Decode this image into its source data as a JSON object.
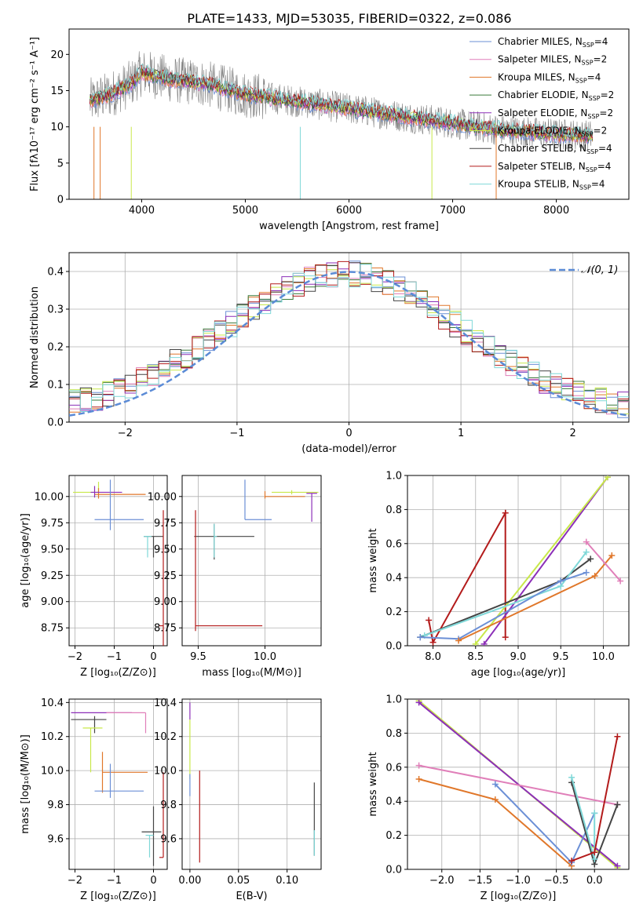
{
  "chart_data": [
    {
      "type": "line",
      "title": "PLATE=1433, MJD=53035, FIBERID=0322, z=0.086",
      "xlabel": "wavelength [Angstrom, rest frame]",
      "ylabel": "Flux [fλ10⁻¹⁷ erg cm⁻² s⁻¹ A⁻¹]",
      "xlim": [
        3300,
        8700
      ],
      "ylim": [
        0,
        23.5
      ],
      "xticks": [
        "4000",
        "5000",
        "6000",
        "7000",
        "8000"
      ],
      "yticks": [
        "0",
        "5",
        "10",
        "15",
        "20"
      ],
      "legend_position": "top-right",
      "series": [
        {
          "name": "Chabrier MILES, N$_{SSP}$=4",
          "color": "#6b8fd6"
        },
        {
          "name": "Salpeter MILES, N$_{SSP}$=2",
          "color": "#e07fb9"
        },
        {
          "name": "Kroupa MILES, N$_{SSP}$=4",
          "color": "#e0772a"
        },
        {
          "name": "Chabrier ELODIE, N$_{SSP}$=2",
          "color": "#3a7a3a"
        },
        {
          "name": "Salpeter ELODIE, N$_{SSP}$=2",
          "color": "#8c2fb8"
        },
        {
          "name": "Kroupa ELODIE, N$_{SSP}$=2",
          "color": "#c8e84a"
        },
        {
          "name": "Chabrier STELIB, N$_{SSP}$=4",
          "color": "#444444"
        },
        {
          "name": "Salpeter STELIB, N$_{SSP}$=4",
          "color": "#b31b1b"
        },
        {
          "name": "Kroupa STELIB, N$_{SSP}$=4",
          "color": "#7fd8d8"
        }
      ],
      "legend_labels": [
        {
          "pre": "Chabrier MILES, N",
          "sub": "SSP",
          "post": "=4"
        },
        {
          "pre": "Salpeter MILES, N",
          "sub": "SSP",
          "post": "=2"
        },
        {
          "pre": "Kroupa MILES, N",
          "sub": "SSP",
          "post": "=4"
        },
        {
          "pre": "Chabrier ELODIE, N",
          "sub": "SSP",
          "post": "=2"
        },
        {
          "pre": "Salpeter ELODIE, N",
          "sub": "SSP",
          "post": "=2"
        },
        {
          "pre": "Kroupa ELODIE, N",
          "sub": "SSP",
          "post": "=2"
        },
        {
          "pre": "Chabrier STELIB, N",
          "sub": "SSP",
          "post": "=4"
        },
        {
          "pre": "Salpeter STELIB, N",
          "sub": "SSP",
          "post": "=4"
        },
        {
          "pre": "Kroupa STELIB, N",
          "sub": "SSP",
          "post": "=4"
        }
      ],
      "continuum": [
        [
          3500,
          13.5
        ],
        [
          3700,
          14.5
        ],
        [
          3900,
          16
        ],
        [
          4000,
          17.5
        ],
        [
          4300,
          16.5
        ],
        [
          4600,
          16
        ],
        [
          5000,
          14.5
        ],
        [
          5500,
          13.5
        ],
        [
          6000,
          12.5
        ],
        [
          6500,
          11.5
        ],
        [
          7000,
          10.5
        ],
        [
          7500,
          9.5
        ],
        [
          8000,
          9
        ],
        [
          8300,
          8.8
        ]
      ]
    },
    {
      "type": "line",
      "xlabel": "(data-model)/error",
      "ylabel": "Normed distribution",
      "xlim": [
        -2.5,
        2.5
      ],
      "ylim": [
        0,
        0.45
      ],
      "xticks": [
        "−2",
        "−1",
        "0",
        "1",
        "2"
      ],
      "yticks": [
        "0.0",
        "0.1",
        "0.2",
        "0.3",
        "0.4"
      ],
      "grid": true,
      "legend_position": "top-right",
      "legend": "𝒩(0, 1)",
      "gaussian": {
        "mean": 0,
        "sigma": 1,
        "color": "#5b8bd6",
        "dash": true
      }
    },
    {
      "type": "scatter",
      "xlabel": "Z [log₁₀(Z/Z⊙)]",
      "ylabel": "age  [log₁₀(age/yr)]",
      "xlim": [
        -2.15,
        0.35
      ],
      "ylim": [
        8.58,
        10.2
      ],
      "xticks": [
        -2,
        -1,
        0
      ],
      "yticks": [
        8.75,
        9.0,
        9.25,
        9.5,
        9.75,
        10.0
      ],
      "grid": true
    },
    {
      "type": "scatter",
      "xlabel": "mass [log₁₀(M/M⊙)]",
      "xlim": [
        9.38,
        10.42
      ],
      "ylim": [
        8.58,
        10.2
      ],
      "xticks": [
        9.5,
        10.0
      ],
      "yticks": [
        8.75,
        9.0,
        9.25,
        9.5,
        9.75,
        10.0
      ],
      "grid": true
    },
    {
      "type": "line",
      "xlabel": "age  [log₁₀(age/yr)]",
      "ylabel": "mass weight",
      "xlim": [
        7.7,
        10.3
      ],
      "ylim": [
        0,
        1
      ],
      "xticks": [
        8.0,
        8.5,
        9.0,
        9.5,
        10.0
      ],
      "yticks": [
        0.0,
        0.2,
        0.4,
        0.6,
        0.8,
        1.0
      ],
      "grid": true,
      "series": [
        {
          "color": "#b31b1b",
          "x": [
            7.95,
            8.0,
            8.85,
            8.85
          ],
          "y": [
            0.15,
            0.02,
            0.78,
            0.05
          ]
        },
        {
          "color": "#8c2fb8",
          "x": [
            8.6,
            10.05
          ],
          "y": [
            0.01,
            0.99
          ]
        },
        {
          "color": "#c8e84a",
          "x": [
            8.5,
            10.05
          ],
          "y": [
            0.01,
            0.99
          ]
        },
        {
          "color": "#444444",
          "x": [
            7.85,
            9.5,
            9.85
          ],
          "y": [
            0.05,
            0.38,
            0.51
          ]
        },
        {
          "color": "#7fd8d8",
          "x": [
            7.9,
            9.5,
            9.8
          ],
          "y": [
            0.06,
            0.35,
            0.55
          ]
        },
        {
          "color": "#6b8fd6",
          "x": [
            7.85,
            8.3,
            9.5,
            9.8
          ],
          "y": [
            0.05,
            0.04,
            0.38,
            0.43
          ]
        },
        {
          "color": "#e0772a",
          "x": [
            8.3,
            9.9,
            10.1
          ],
          "y": [
            0.03,
            0.41,
            0.53
          ]
        },
        {
          "color": "#e07fb9",
          "x": [
            9.8,
            10.2
          ],
          "y": [
            0.61,
            0.38
          ]
        }
      ]
    },
    {
      "type": "scatter",
      "xlabel": "Z [log₁₀(Z/Z⊙)]",
      "ylabel": "mass [log₁₀(M/M⊙)]",
      "xlim": [
        -2.15,
        0.35
      ],
      "ylim": [
        9.42,
        10.42
      ],
      "xticks": [
        -2,
        -1,
        0
      ],
      "yticks": [
        9.6,
        9.8,
        10.0,
        10.2,
        10.4
      ],
      "grid": true
    },
    {
      "type": "scatter",
      "xlabel": "E(B-V)",
      "xlim": [
        -0.008,
        0.135
      ],
      "ylim": [
        9.42,
        10.42
      ],
      "xticks": [
        "0.00",
        "0.05",
        "0.10"
      ],
      "yticks": [
        9.6,
        9.8,
        10.0,
        10.2,
        10.4
      ],
      "grid": true
    },
    {
      "type": "line",
      "xlabel": "Z [log₁₀(Z/Z⊙)]",
      "ylabel": "mass weight",
      "xlim": [
        -2.45,
        0.45
      ],
      "ylim": [
        0,
        1
      ],
      "xticks": [
        -2.0,
        -1.5,
        -1.0,
        -0.5,
        0.0
      ],
      "yticks": [
        0.0,
        0.2,
        0.4,
        0.6,
        0.8,
        1.0
      ],
      "grid": true,
      "series": [
        {
          "color": "#c8e84a",
          "x": [
            -2.3,
            0.3
          ],
          "y": [
            0.99,
            0.01
          ]
        },
        {
          "color": "#8c2fb8",
          "x": [
            -2.3,
            0.3
          ],
          "y": [
            0.98,
            0.02
          ]
        },
        {
          "color": "#e07fb9",
          "x": [
            -2.3,
            0.3
          ],
          "y": [
            0.61,
            0.38
          ]
        },
        {
          "color": "#e0772a",
          "x": [
            -2.3,
            -1.3,
            -0.3
          ],
          "y": [
            0.53,
            0.41,
            0.02
          ]
        },
        {
          "color": "#6b8fd6",
          "x": [
            -1.3,
            -0.3,
            0.0
          ],
          "y": [
            0.5,
            0.04,
            0.33
          ]
        },
        {
          "color": "#444444",
          "x": [
            -0.3,
            0.0,
            0.3
          ],
          "y": [
            0.51,
            0.03,
            0.38
          ]
        },
        {
          "color": "#7fd8d8",
          "x": [
            -0.3,
            0.0,
            0.0
          ],
          "y": [
            0.54,
            0.06,
            0.33
          ]
        },
        {
          "color": "#b31b1b",
          "x": [
            -0.3,
            0.0,
            0.3
          ],
          "y": [
            0.05,
            0.1,
            0.78
          ]
        }
      ]
    }
  ],
  "colors": [
    "#6b8fd6",
    "#e07fb9",
    "#e0772a",
    "#3a7a3a",
    "#8c2fb8",
    "#c8e84a",
    "#444444",
    "#b31b1b",
    "#7fd8d8"
  ],
  "grid_color": "#b0b0b0"
}
